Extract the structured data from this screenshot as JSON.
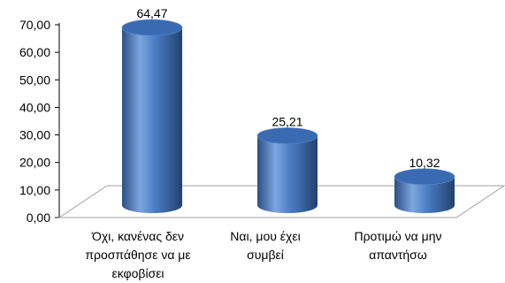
{
  "chart_data": {
    "type": "bar",
    "style": "3d-cylinder",
    "categories": [
      [
        "Όχι, κανένας δεν",
        "προσπάθησε να με",
        "εκφοβίσει"
      ],
      [
        "Ναι, μου έχει",
        "συμβεί"
      ],
      [
        "Προτιμώ να μην",
        "απαντήσω"
      ]
    ],
    "values": [
      64.47,
      25.21,
      10.32
    ],
    "value_labels": [
      "64,47",
      "25,21",
      "10,32"
    ],
    "ylim": [
      0,
      70
    ],
    "yticks": [
      "0,00",
      "10,00",
      "20,00",
      "30,00",
      "40,00",
      "50,00",
      "60,00",
      "70,00"
    ],
    "grid": false,
    "legend": "none",
    "colors": {
      "bar_light": "#7ea6e0",
      "bar_mid": "#4a7dc4",
      "bar_dark": "#2b4f86",
      "bar_top": "#3a6ab2",
      "axis": "#000000",
      "floor": "#a0a0a0"
    }
  }
}
